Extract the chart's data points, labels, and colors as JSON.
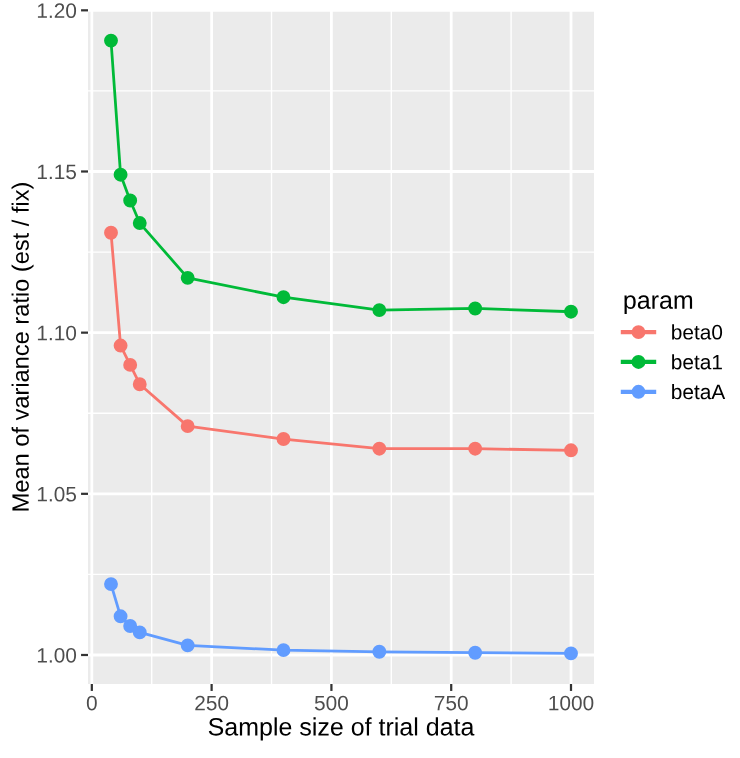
{
  "chart_data": {
    "type": "line",
    "xlabel": "Sample size of trial data",
    "ylabel": "Mean of variance ratio (est / fix)",
    "legend_title": "param",
    "x": [
      40,
      60,
      80,
      100,
      200,
      400,
      600,
      800,
      1000
    ],
    "series": [
      {
        "name": "beta0",
        "color": "#f8766d",
        "values": [
          1.131,
          1.096,
          1.09,
          1.084,
          1.071,
          1.067,
          1.064,
          1.064,
          1.0635
        ]
      },
      {
        "name": "beta1",
        "color": "#00ba38",
        "values": [
          1.1906,
          1.149,
          1.141,
          1.134,
          1.117,
          1.111,
          1.107,
          1.1075,
          1.1065
        ]
      },
      {
        "name": "betaA",
        "color": "#619cff",
        "values": [
          1.022,
          1.012,
          1.009,
          1.007,
          1.003,
          1.0015,
          1.001,
          1.0007,
          1.0005
        ]
      }
    ],
    "xlim": [
      -8,
      1048
    ],
    "ylim": [
      0.991,
      1.2001
    ],
    "xticks": [
      0,
      250,
      500,
      750,
      1000
    ],
    "yticks": [
      {
        "value": 1.0,
        "label": "1.00"
      },
      {
        "value": 1.05,
        "label": "1.05"
      },
      {
        "value": 1.1,
        "label": "1.10"
      },
      {
        "value": 1.15,
        "label": "1.15"
      },
      {
        "value": 1.2,
        "label": "1.20"
      }
    ],
    "grid": true,
    "legend": "right",
    "marker": "circle",
    "line_style": "solid"
  }
}
